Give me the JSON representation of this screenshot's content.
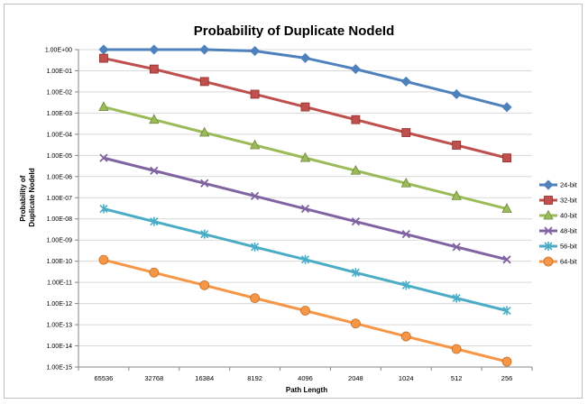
{
  "chart_data": {
    "type": "line",
    "title": "Probability of Duplicate NodeId",
    "xlabel": "Path Length",
    "ylabel_lines": [
      "Probability of",
      "Duplicate NodeId"
    ],
    "y_scale": "log",
    "ylim": [
      1e-15,
      1
    ],
    "grid": true,
    "legend_position": "right",
    "categories": [
      "65536",
      "32768",
      "16384",
      "8192",
      "4096",
      "2048",
      "1024",
      "512",
      "256"
    ],
    "y_tick_labels": [
      "1.00E+00",
      "1.00E-01",
      "1.00E-02",
      "1.00E-03",
      "1.00E-04",
      "1.00E-05",
      "1.00E-06",
      "1.00E-07",
      "1.00E-08",
      "1.00E-09",
      "1.00E-10",
      "1.00E-11",
      "1.00E-12",
      "1.00E-13",
      "1.00E-14",
      "1.00E-15"
    ],
    "series": [
      {
        "name": "24-bit",
        "color": "#4f81bd",
        "marker": "diamond",
        "values": [
          1.0,
          1.0,
          1.0,
          0.86,
          0.4,
          0.12,
          0.031,
          0.0078,
          0.0019
        ]
      },
      {
        "name": "32-bit",
        "color": "#c0504d",
        "marker": "square",
        "values": [
          0.39,
          0.12,
          0.031,
          0.0078,
          0.00195,
          0.00049,
          0.00012,
          3.05e-05,
          7.6e-06
        ]
      },
      {
        "name": "40-bit",
        "color": "#9bbb59",
        "marker": "triangle",
        "values": [
          0.00195,
          0.00049,
          0.00012,
          3.05e-05,
          7.6e-06,
          1.9e-06,
          4.8e-07,
          1.2e-07,
          3e-08
        ]
      },
      {
        "name": "48-bit",
        "color": "#8064a2",
        "marker": "x",
        "values": [
          7.6e-06,
          1.9e-06,
          4.8e-07,
          1.2e-07,
          3e-08,
          7.5e-09,
          1.9e-09,
          4.7e-10,
          1.2e-10
        ]
      },
      {
        "name": "56-bit",
        "color": "#4bacc6",
        "marker": "star",
        "values": [
          3e-08,
          7.5e-09,
          1.9e-09,
          4.7e-10,
          1.2e-10,
          2.9e-11,
          7.3e-12,
          1.8e-12,
          4.6e-13
        ]
      },
      {
        "name": "64-bit",
        "color": "#f79646",
        "marker": "circle",
        "values": [
          1.16e-10,
          2.9e-11,
          7.3e-12,
          1.8e-12,
          4.6e-13,
          1.14e-13,
          2.8e-14,
          7.1e-15,
          1.8e-15
        ]
      }
    ]
  }
}
